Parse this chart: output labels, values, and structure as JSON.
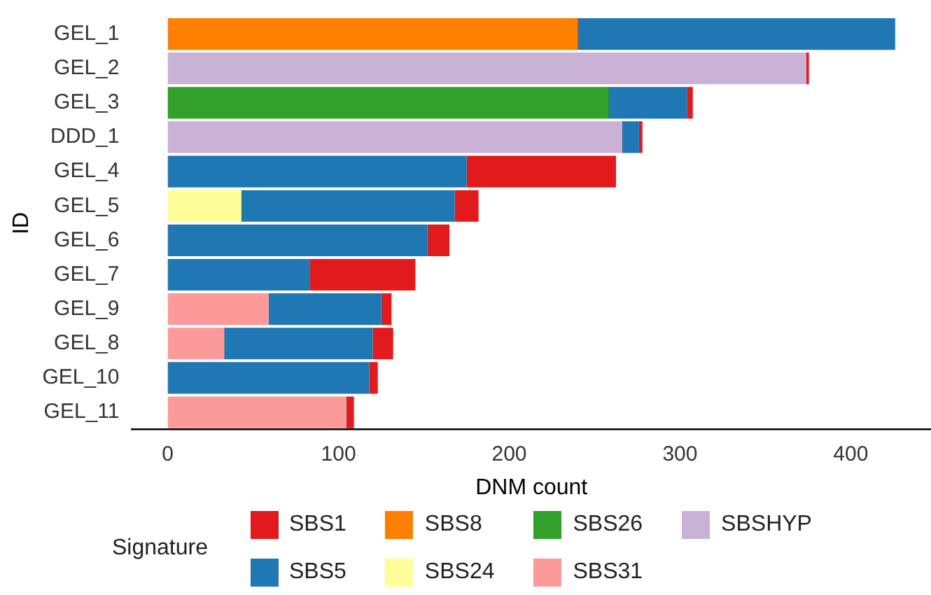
{
  "chart_data": {
    "type": "bar",
    "orientation": "horizontal",
    "stacked": true,
    "xlabel": "DNM count",
    "ylabel": "ID",
    "legend_title": "Signature",
    "legend": "bottom",
    "grid": false,
    "categories": [
      "GEL_1",
      "GEL_2",
      "GEL_3",
      "DDD_1",
      "GEL_4",
      "GEL_5",
      "GEL_6",
      "GEL_7",
      "GEL_9",
      "GEL_8",
      "GEL_10",
      "GEL_11"
    ],
    "xlim": [
      -21,
      447
    ],
    "xticks": [
      0,
      100,
      200,
      300,
      400
    ],
    "series": [
      {
        "name": "SBSHYP",
        "color": "#cab2d6",
        "values": [
          null,
          374,
          null,
          266,
          null,
          null,
          null,
          null,
          null,
          null,
          null,
          null
        ]
      },
      {
        "name": "SBS31",
        "color": "#fb9a99",
        "values": [
          null,
          null,
          null,
          null,
          null,
          null,
          null,
          null,
          59,
          33,
          null,
          104.5
        ]
      },
      {
        "name": "SBS26",
        "color": "#33a02c",
        "values": [
          null,
          null,
          258,
          null,
          null,
          null,
          null,
          null,
          null,
          null,
          null,
          null
        ]
      },
      {
        "name": "SBS24",
        "color": "#ffff99",
        "values": [
          null,
          null,
          null,
          null,
          null,
          43,
          null,
          null,
          null,
          null,
          null,
          null
        ]
      },
      {
        "name": "SBS8",
        "color": "#ff7f00",
        "values": [
          240,
          null,
          null,
          null,
          null,
          null,
          null,
          null,
          null,
          null,
          null,
          null
        ]
      },
      {
        "name": "SBS5",
        "color": "#1f78b4",
        "values": [
          186,
          null,
          46,
          10,
          175,
          125,
          152,
          83,
          66,
          87,
          118,
          null
        ]
      },
      {
        "name": "SBS1",
        "color": "#e31a1c",
        "values": [
          null,
          1.5,
          3.5,
          2,
          87.5,
          14,
          13,
          62,
          6,
          12,
          5,
          4.5
        ]
      }
    ]
  }
}
